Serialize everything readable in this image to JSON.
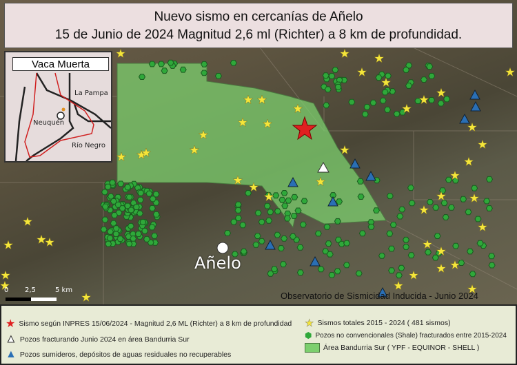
{
  "title": {
    "line1": "Nuevo sismo en cercanías de Añelo",
    "line2": "15 de Junio  de 2024   Magnitud 2,6  ml (Richter) a 8 km de profundidad."
  },
  "inset": {
    "title": "Vaca Muerta",
    "labels": {
      "la_pampa": "La Pampa",
      "neuquen": "Neuquén",
      "rio_negro": "Río Negro"
    }
  },
  "map": {
    "town": "Añelo",
    "watermark": "Observatorio de Sismicidad Inducida - Junio 2024",
    "scale": {
      "zero": "0",
      "mid": "2,5",
      "end": "5 km"
    }
  },
  "legend": {
    "quake": "Sismo según INPRES 15/06/2024 - Magnitud 2,6 ML (Richter) a 8 km de profundidad",
    "total_quakes": "Sismos totales 2015 - 2024 ( 481 sismos)",
    "fracturing": "Pozos fracturando Junio 2024 en área Bandurria Sur",
    "shale_wells": "Pozos no convencionales (Shale) fracturados entre 2015-2024",
    "area": "Área Bandurria Sur ( YPF - EQUINOR - SHELL )",
    "sinks": "Pozos sumideros, depósitos de aguas residuales no recuperables"
  },
  "colors": {
    "quake": "#e02020",
    "stars": "#f5e63a",
    "wells": "#2fa83a",
    "area": "#7ccf6e",
    "sinks": "#2a6fb5",
    "fracturing": "#ffffff"
  }
}
